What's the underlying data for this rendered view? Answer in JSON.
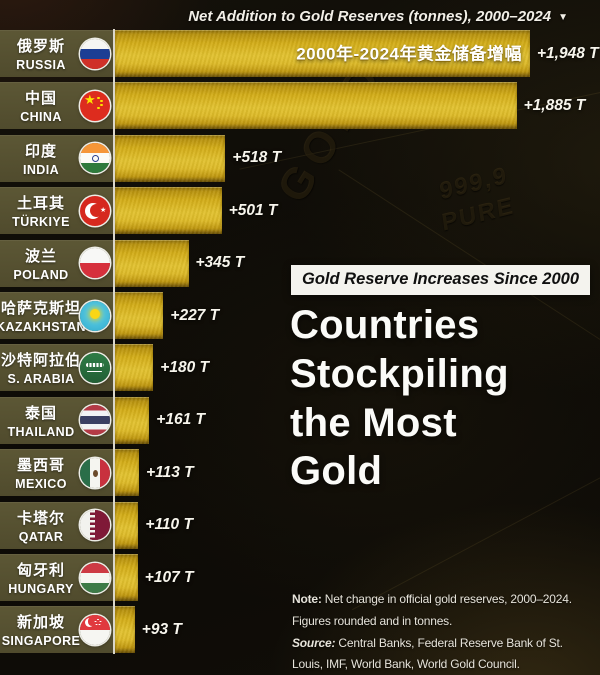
{
  "header": {
    "title": "Net Addition to Gold Reserves (tonnes), 2000–2024",
    "dropdown_icon": "chevron-down-icon",
    "chevron_glyph": "▼"
  },
  "chart_data": {
    "type": "bar",
    "orientation": "horizontal",
    "title": "Net Addition to Gold Reserves (tonnes), 2000–2024",
    "unit": "tonnes",
    "xlim": [
      0,
      1948
    ],
    "grid": false,
    "overlay_label_zh": "2000年-2024年黄金储备增幅",
    "categories": [
      "RUSSIA",
      "CHINA",
      "INDIA",
      "TÜRKIYE",
      "POLAND",
      "KAZAKHSTAN",
      "S. ARABIA",
      "THAILAND",
      "MEXICO",
      "QATAR",
      "HUNGARY",
      "SINGAPORE"
    ],
    "values": [
      1948,
      1885,
      518,
      501,
      345,
      227,
      180,
      161,
      113,
      110,
      107,
      93
    ],
    "rows": [
      {
        "name_zh": "俄罗斯",
        "name_en": "RUSSIA",
        "value": 1948,
        "value_label": "+1,948 T",
        "flag": "russia",
        "flag_icon": "russia-flag-icon"
      },
      {
        "name_zh": "中国",
        "name_en": "CHINA",
        "value": 1885,
        "value_label": "+1,885 T",
        "flag": "china",
        "flag_icon": "china-flag-icon"
      },
      {
        "name_zh": "印度",
        "name_en": "INDIA",
        "value": 518,
        "value_label": "+518 T",
        "flag": "india",
        "flag_icon": "india-flag-icon"
      },
      {
        "name_zh": "土耳其",
        "name_en": "TÜRKIYE",
        "value": 501,
        "value_label": "+501 T",
        "flag": "turkiye",
        "flag_icon": "turkiye-flag-icon"
      },
      {
        "name_zh": "波兰",
        "name_en": "POLAND",
        "value": 345,
        "value_label": "+345 T",
        "flag": "poland",
        "flag_icon": "poland-flag-icon"
      },
      {
        "name_zh": "哈萨克斯坦",
        "name_en": "KAZAKHSTAN",
        "value": 227,
        "value_label": "+227 T",
        "flag": "kazakhstan",
        "flag_icon": "kazakhstan-flag-icon"
      },
      {
        "name_zh": "沙特阿拉伯",
        "name_en": "S. ARABIA",
        "value": 180,
        "value_label": "+180 T",
        "flag": "saudi-arabia",
        "flag_icon": "saudi-arabia-flag-icon"
      },
      {
        "name_zh": "泰国",
        "name_en": "THAILAND",
        "value": 161,
        "value_label": "+161 T",
        "flag": "thailand",
        "flag_icon": "thailand-flag-icon"
      },
      {
        "name_zh": "墨西哥",
        "name_en": "MEXICO",
        "value": 113,
        "value_label": "+113 T",
        "flag": "mexico",
        "flag_icon": "mexico-flag-icon"
      },
      {
        "name_zh": "卡塔尔",
        "name_en": "QATAR",
        "value": 110,
        "value_label": "+110 T",
        "flag": "qatar",
        "flag_icon": "qatar-flag-icon"
      },
      {
        "name_zh": "匈牙利",
        "name_en": "HUNGARY",
        "value": 107,
        "value_label": "+107 T",
        "flag": "hungary",
        "flag_icon": "hungary-flag-icon"
      },
      {
        "name_zh": "新加坡",
        "name_en": "SINGAPORE",
        "value": 93,
        "value_label": "+93 T",
        "flag": "singapore",
        "flag_icon": "singapore-flag-icon"
      }
    ]
  },
  "title_block": {
    "badge": "Gold Reserve Increases Since 2000",
    "title_lines": [
      "Countries",
      "Stockpiling",
      "the Most",
      "Gold"
    ]
  },
  "footnote": {
    "lines": [
      {
        "prefix": "Note:",
        "prefix_style": "bold",
        "text": " Net change in official gold reserves, 2000–2024."
      },
      {
        "prefix": "",
        "prefix_style": "",
        "text": "Figures rounded and in tonnes."
      },
      {
        "prefix": "Source:",
        "prefix_style": "bold-italic",
        "text": " Central Banks, Federal Reserve Bank of St."
      },
      {
        "prefix": "",
        "prefix_style": "",
        "text": "Louis, IMF, World Bank, World Gold Council."
      }
    ]
  },
  "background": {
    "embossed_texts": [
      "999,9 PURE",
      "GOLD"
    ]
  },
  "colors": {
    "bar_gold": "#d4a91a",
    "label_panel_olive": "#565231",
    "background_dark": "#0d0b07",
    "badge_bg": "#f4f3ee",
    "badge_text": "#101010",
    "text_white": "#ffffff",
    "separator_line": "#f6f3e6"
  }
}
